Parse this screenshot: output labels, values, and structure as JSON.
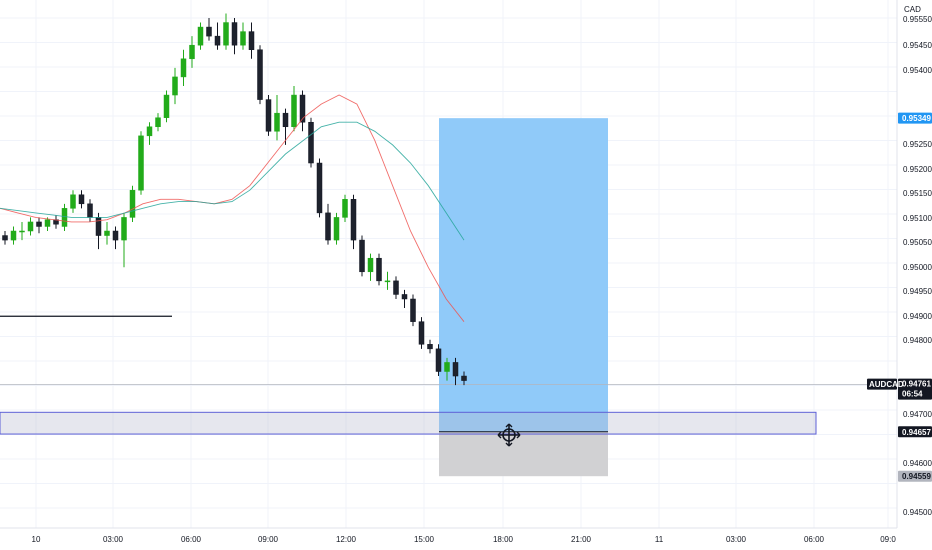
{
  "chart_data": {
    "type": "candlestick",
    "symbol": "AUDCAD",
    "currency": "CAD",
    "price_axis_ticks": [
      "0.95550",
      "0.95450",
      "0.95400",
      "0.95300",
      "0.95250",
      "0.95200",
      "0.95150",
      "0.95100",
      "0.95050",
      "0.95000",
      "0.94950",
      "0.94900",
      "0.94800",
      "0.94700",
      "0.94600",
      "0.94500"
    ],
    "time_axis_ticks": [
      "10",
      "03:00",
      "06:00",
      "09:00",
      "12:00",
      "15:00",
      "18:00",
      "21:00",
      "11",
      "03:00",
      "06:00",
      "09:0"
    ],
    "ylim": [
      0.9448,
      0.9557
    ],
    "current_price": {
      "label": "AUDCAD",
      "price": "0.94761",
      "countdown": "06:54"
    },
    "position": {
      "type": "long",
      "target": {
        "price": "0.95349",
        "color": "#2196f3"
      },
      "entry": {
        "price": "0.94657"
      },
      "stop": {
        "price": "0.94559",
        "color": "#9e9e9e"
      }
    },
    "zone": {
      "top": 0.947,
      "bottom": 0.94652
    },
    "support_line": 0.94912,
    "candles": [
      [
        0.9509,
        0.951,
        0.9507,
        0.9508
      ],
      [
        0.9508,
        0.9511,
        0.9507,
        0.951
      ],
      [
        0.951,
        0.9512,
        0.9508,
        0.951
      ],
      [
        0.951,
        0.9513,
        0.9509,
        0.9512
      ],
      [
        0.9512,
        0.9513,
        0.95095,
        0.9511
      ],
      [
        0.9511,
        0.9513,
        0.951,
        0.95125
      ],
      [
        0.95125,
        0.95135,
        0.95105,
        0.95115
      ],
      [
        0.9511,
        0.9516,
        0.951,
        0.9515
      ],
      [
        0.9515,
        0.9519,
        0.9514,
        0.9518
      ],
      [
        0.9518,
        0.9519,
        0.9515,
        0.9516
      ],
      [
        0.9516,
        0.9517,
        0.9512,
        0.9513
      ],
      [
        0.9513,
        0.9514,
        0.9506,
        0.9509
      ],
      [
        0.9509,
        0.9512,
        0.9507,
        0.951
      ],
      [
        0.951,
        0.9511,
        0.9506,
        0.9508
      ],
      [
        0.9508,
        0.9514,
        0.9502,
        0.9513
      ],
      [
        0.9513,
        0.952,
        0.9512,
        0.9519
      ],
      [
        0.9519,
        0.9532,
        0.9518,
        0.9531
      ],
      [
        0.9531,
        0.9534,
        0.9529,
        0.9533
      ],
      [
        0.9533,
        0.9536,
        0.9532,
        0.9535
      ],
      [
        0.9535,
        0.9541,
        0.9534,
        0.954
      ],
      [
        0.954,
        0.9546,
        0.9538,
        0.9544
      ],
      [
        0.9544,
        0.955,
        0.9542,
        0.9548
      ],
      [
        0.9548,
        0.9553,
        0.9546,
        0.9551
      ],
      [
        0.9551,
        0.9556,
        0.955,
        0.9555
      ],
      [
        0.9555,
        0.9557,
        0.9552,
        0.9553
      ],
      [
        0.9553,
        0.9556,
        0.955,
        0.9551
      ],
      [
        0.9551,
        0.9558,
        0.955,
        0.9556
      ],
      [
        0.9556,
        0.9557,
        0.9549,
        0.9551
      ],
      [
        0.9551,
        0.9556,
        0.955,
        0.9554
      ],
      [
        0.9554,
        0.9556,
        0.9548,
        0.955
      ],
      [
        0.955,
        0.9551,
        0.9538,
        0.9539
      ],
      [
        0.9539,
        0.954,
        0.9531,
        0.9532
      ],
      [
        0.9532,
        0.954,
        0.953,
        0.9536
      ],
      [
        0.9536,
        0.9537,
        0.9529,
        0.9533
      ],
      [
        0.9533,
        0.9542,
        0.9532,
        0.954
      ],
      [
        0.954,
        0.9541,
        0.9532,
        0.9534
      ],
      [
        0.9534,
        0.9535,
        0.9524,
        0.9525
      ],
      [
        0.9525,
        0.9526,
        0.9513,
        0.9514
      ],
      [
        0.9514,
        0.9516,
        0.9507,
        0.9508
      ],
      [
        0.9508,
        0.9514,
        0.9507,
        0.9513
      ],
      [
        0.9513,
        0.9518,
        0.9512,
        0.9517
      ],
      [
        0.9517,
        0.9518,
        0.9506,
        0.9508
      ],
      [
        0.9508,
        0.9509,
        0.95,
        0.9501
      ],
      [
        0.9501,
        0.9505,
        0.9499,
        0.9504
      ],
      [
        0.9504,
        0.9505,
        0.9498,
        0.9499
      ],
      [
        0.9499,
        0.9501,
        0.9497,
        0.9499
      ],
      [
        0.9499,
        0.95,
        0.9495,
        0.9496
      ],
      [
        0.9496,
        0.9497,
        0.9493,
        0.9495
      ],
      [
        0.9495,
        0.9496,
        0.9489,
        0.949
      ],
      [
        0.949,
        0.9491,
        0.9484,
        0.9485
      ],
      [
        0.9485,
        0.9486,
        0.9483,
        0.9484
      ],
      [
        0.9484,
        0.9485,
        0.9478,
        0.9479
      ],
      [
        0.9479,
        0.9482,
        0.9477,
        0.9481
      ],
      [
        0.9481,
        0.9482,
        0.9476,
        0.9478
      ],
      [
        0.9478,
        0.9479,
        0.9476,
        0.9477
      ]
    ],
    "ma_fast": [
      0.9515,
      0.9514,
      0.9513,
      0.95125,
      0.9512,
      0.9512,
      0.95125,
      0.9514,
      0.9516,
      0.9517,
      0.9517,
      0.95165,
      0.9516,
      0.9517,
      0.952,
      0.9525,
      0.953,
      0.9535,
      0.9538,
      0.954,
      0.9538,
      0.953,
      0.952,
      0.951,
      0.9502,
      0.9495,
      0.949
    ],
    "ma_slow": [
      0.9515,
      0.95145,
      0.9514,
      0.95135,
      0.9513,
      0.9513,
      0.9513,
      0.9514,
      0.9515,
      0.9516,
      0.95165,
      0.95165,
      0.9516,
      0.95165,
      0.9519,
      0.9523,
      0.9527,
      0.953,
      0.9533,
      0.9534,
      0.9534,
      0.9532,
      0.9529,
      0.9525,
      0.952,
      0.9514,
      0.9508
    ],
    "colors": {
      "up": "#22ab1a",
      "down": "#131722",
      "ma_fast": "#ef5350",
      "ma_slow": "#26a69a",
      "target_zone": "#90caf9",
      "stop_zone": "#d1d1d3",
      "target_badge": "#2196f3"
    }
  }
}
